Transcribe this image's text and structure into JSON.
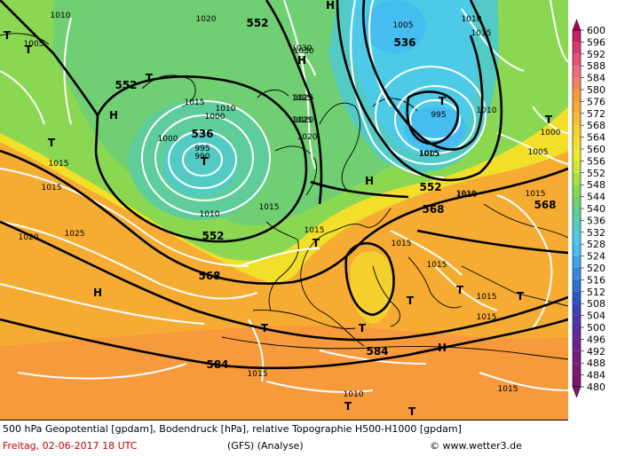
{
  "footer": {
    "description": "500 hPa Geopotential [gpdam], Bodendruck [hPa], relative Topographie H500-H1000 [gpdam]",
    "date": "Freitag, 02-06-2017  18 UTC",
    "model": "(GFS)   (Analyse)",
    "copyright": "© www.wetter3.de"
  },
  "legend": {
    "values": [
      "600",
      "596",
      "592",
      "588",
      "584",
      "580",
      "576",
      "572",
      "568",
      "564",
      "560",
      "556",
      "552",
      "548",
      "544",
      "540",
      "536",
      "532",
      "528",
      "524",
      "520",
      "516",
      "512",
      "508",
      "504",
      "500",
      "496",
      "492",
      "488",
      "484",
      "480"
    ],
    "colors": [
      "#b8005a",
      "#c81f63",
      "#d83a6e",
      "#e6507a",
      "#f06a84",
      "#f5845c",
      "#f69a3c",
      "#f6ac32",
      "#f6bd30",
      "#f5cf2e",
      "#f2df2a",
      "#eceb29",
      "#cde733",
      "#a9df40",
      "#8ad752",
      "#6fcf72",
      "#5ecd9b",
      "#53cbc4",
      "#4dcbe6",
      "#46bdf0",
      "#3ea5ea",
      "#3489de",
      "#2d6fd2",
      "#2a58c6",
      "#3b45b9",
      "#5034aa",
      "#62289c",
      "#6c2090",
      "#741c84",
      "#7a1878",
      "#7f146c"
    ]
  },
  "isobars": [
    "1010",
    "1005",
    "1020",
    "1030",
    "1025",
    "1015",
    "1000",
    "995",
    "990",
    "1010",
    "1000",
    "1005",
    "1010",
    "1015",
    "1020",
    "1025",
    "1015",
    "1015",
    "1015",
    "1015",
    "1015",
    "1010",
    "1025",
    "1015",
    "1015",
    "1010",
    "1015",
    "1015",
    "1010",
    "1005",
    "1000",
    "995",
    "1010",
    "1015",
    "1020",
    "1030",
    "1025",
    "1020",
    "1010",
    "1005",
    "1015",
    "1015"
  ],
  "geopotential": [
    "552",
    "536",
    "552",
    "568",
    "552",
    "584",
    "536",
    "552",
    "568",
    "584",
    "568"
  ],
  "pressure_centers": [
    "T",
    "T",
    "T",
    "H",
    "T",
    "T",
    "H",
    "H",
    "T",
    "T",
    "T",
    "T",
    "T",
    "T",
    "T",
    "H",
    "H",
    "T",
    "H",
    "T",
    "T"
  ]
}
